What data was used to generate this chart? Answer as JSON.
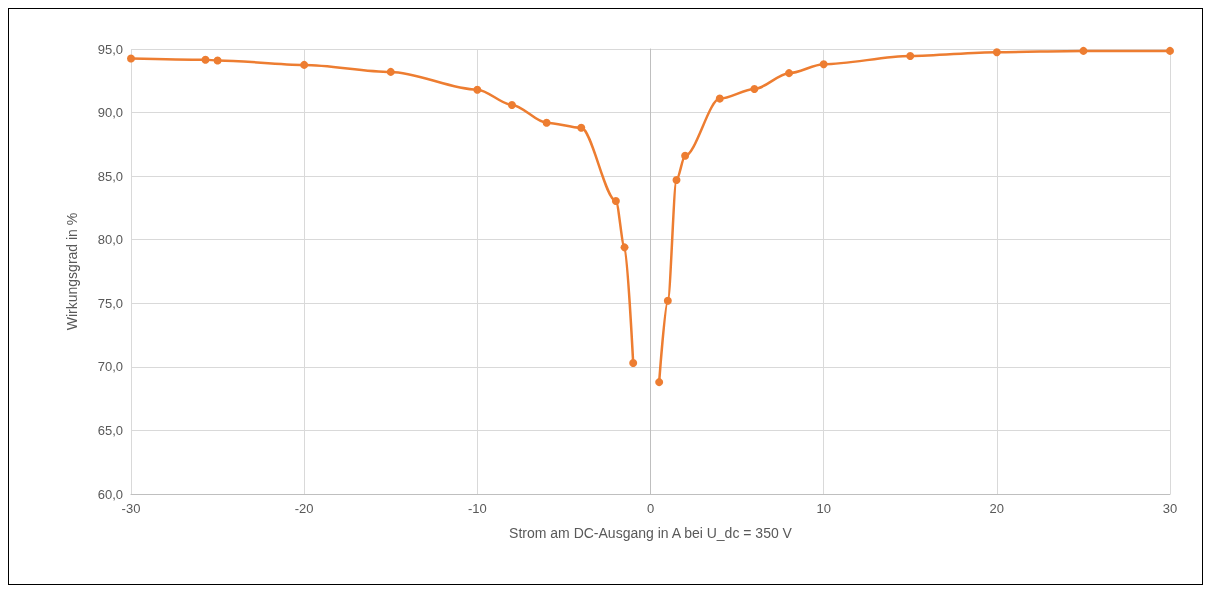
{
  "chart_data": {
    "type": "line",
    "xlabel": "Strom am DC-Ausgang in A bei U_dc = 350 V",
    "ylabel": "Wirkungsgrad in %",
    "x": [
      -30,
      -25.7,
      -25,
      -20,
      -15,
      -10,
      -8,
      -6,
      -4,
      -2,
      -1.5,
      -1,
      0,
      0.5,
      1,
      1.5,
      2,
      4,
      6,
      8,
      10,
      15,
      20,
      25,
      30
    ],
    "series": [
      {
        "color": "#ed7d31",
        "values": [
          94.25,
          94.15,
          94.1,
          93.75,
          93.2,
          91.8,
          90.6,
          89.2,
          88.8,
          83.05,
          79.4,
          70.3,
          null,
          68.8,
          75.2,
          84.7,
          86.6,
          91.1,
          91.85,
          93.1,
          93.8,
          94.45,
          94.75,
          94.85,
          94.85
        ]
      }
    ],
    "xlim": [
      -30,
      30
    ],
    "xticks": [
      -30,
      -20,
      -10,
      0,
      10,
      20,
      30
    ],
    "ylim": [
      60,
      95
    ],
    "yticks": [
      {
        "value": 60,
        "label": "60,0"
      },
      {
        "value": 65,
        "label": "65,0"
      },
      {
        "value": 70,
        "label": "70,0"
      },
      {
        "value": 75,
        "label": "75,0"
      },
      {
        "value": 80,
        "label": "80,0"
      },
      {
        "value": 85,
        "label": "85,0"
      },
      {
        "value": 90,
        "label": "90,0"
      },
      {
        "value": 95,
        "label": "95,0"
      }
    ],
    "grid": true,
    "marker": "circle",
    "line_style": "solid"
  }
}
